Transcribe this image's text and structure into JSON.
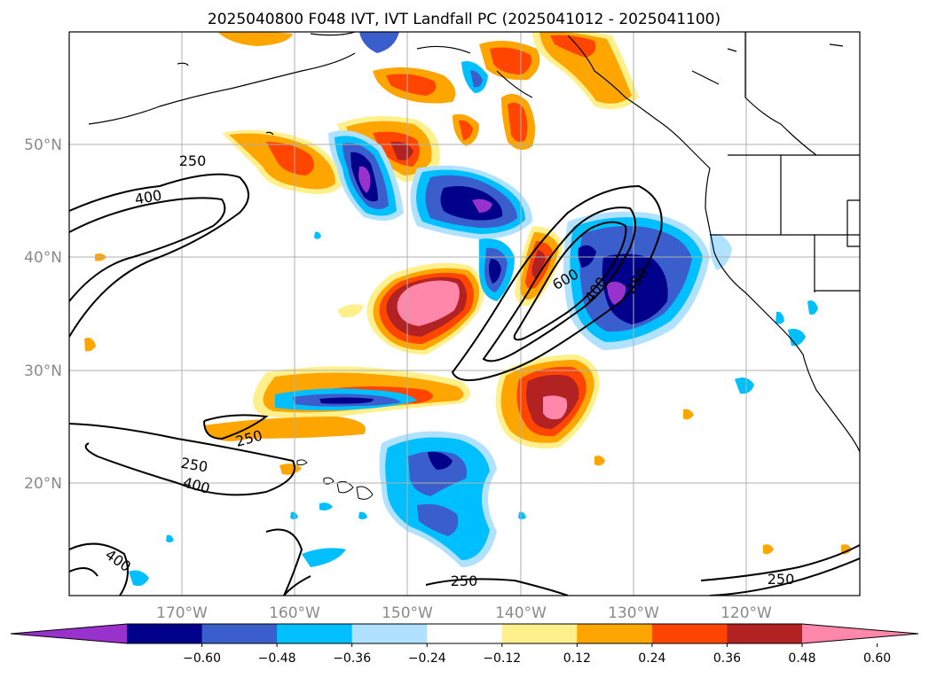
{
  "title": "2025040800 F048 IVT, IVT Landfall PC (2025041012 - 2025041100)",
  "lat_labels": [
    "50°N",
    "40°N",
    "30°N",
    "20°N"
  ],
  "lon_labels": [
    "170°W",
    "160°W",
    "150°W",
    "140°W",
    "130°W",
    "120°W"
  ],
  "colorbar": {
    "ticks": [
      "−0.60",
      "−0.48",
      "−0.36",
      "−0.24",
      "−0.12",
      "0.12",
      "0.24",
      "0.36",
      "0.48",
      "0.60"
    ],
    "colors": [
      "#9932cc",
      "#00008b",
      "#3a5fcd",
      "#00bfff",
      "#b0e2ff",
      "#ffffff",
      "#fff08c",
      "#ffa500",
      "#ff4500",
      "#b22222",
      "#ff88aa"
    ]
  },
  "contour_labels": {
    "c1": "250",
    "c2": "400",
    "c3": "250",
    "c4": "250",
    "c5": "400",
    "c6": "400",
    "c7": "600",
    "c8": "400",
    "c9": "250",
    "c10": "250",
    "c11": "250"
  },
  "colors": {
    "coast": "#000000",
    "grid": "#b0b0b0"
  }
}
